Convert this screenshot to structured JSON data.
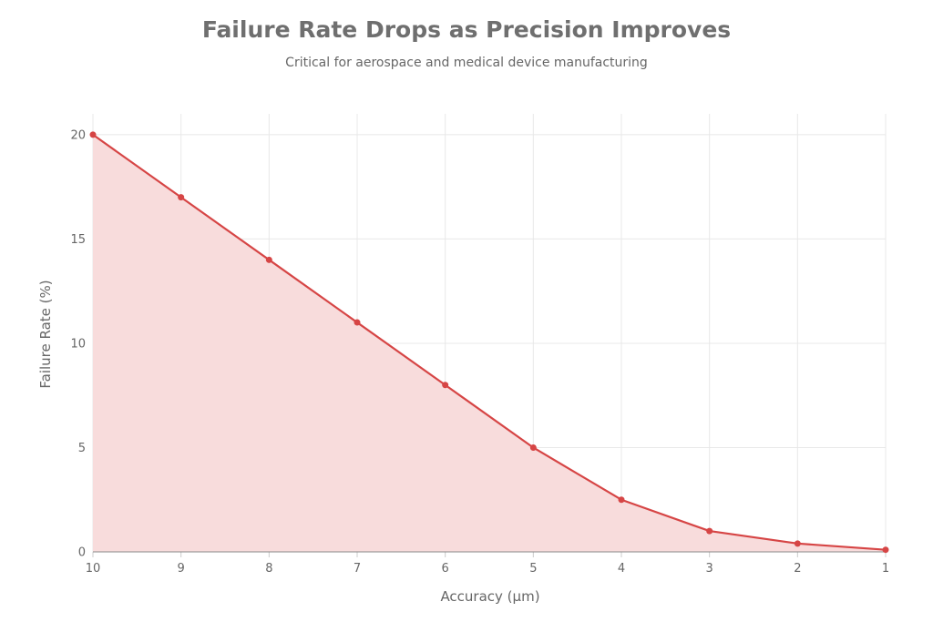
{
  "chart_data": {
    "type": "area",
    "title": "Failure Rate Drops as Precision Improves",
    "subtitle": "Critical for aerospace and medical device manufacturing",
    "xlabel": "Accuracy (µm)",
    "ylabel": "Failure Rate (%)",
    "x_reversed": true,
    "xlim": [
      10,
      1
    ],
    "ylim": [
      0,
      21
    ],
    "yticks": [
      0,
      5,
      10,
      15,
      20
    ],
    "grid": true,
    "legend": "none",
    "series": [
      {
        "x": [
          10,
          9,
          8,
          7,
          6,
          5,
          4,
          3,
          2,
          1
        ],
        "values": [
          20,
          17,
          14,
          11,
          8,
          5,
          2.5,
          1,
          0.4,
          0.1
        ],
        "color": "#d64545",
        "fill": "#f8dcdc"
      }
    ]
  }
}
